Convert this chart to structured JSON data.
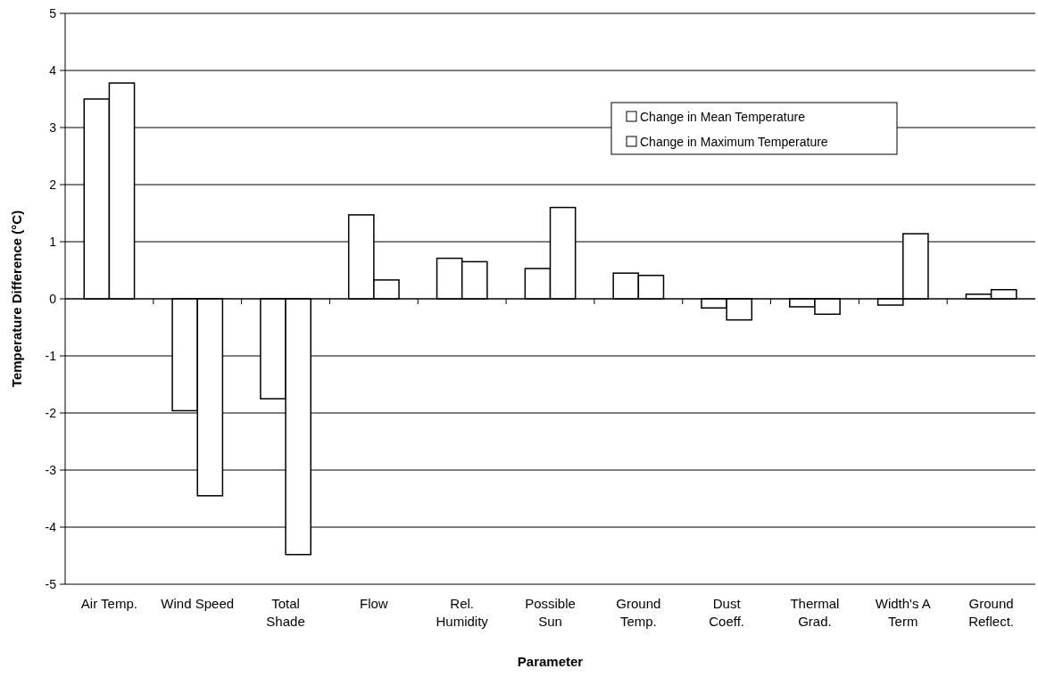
{
  "chart_data": {
    "type": "bar",
    "xlabel": "Parameter",
    "ylabel": "Temperature Difference (°C)",
    "categories": [
      "Air Temp.",
      "Wind Speed",
      "Total Shade",
      "Flow",
      "Rel. Humidity",
      "Possible Sun",
      "Ground Temp.",
      "Dust Coeff.",
      "Thermal Grad.",
      "Width's A Term",
      "Ground Reflect."
    ],
    "series": [
      {
        "name": "Change in Mean Temperature",
        "color": "#ffffff",
        "values": [
          3.5,
          -1.96,
          -1.75,
          1.47,
          0.71,
          0.53,
          0.45,
          -0.16,
          -0.14,
          -0.11,
          0.08
        ]
      },
      {
        "name": "Change in Maximum Temperature",
        "color": "#ffffff",
        "values": [
          3.78,
          -3.45,
          -4.48,
          0.33,
          0.65,
          1.6,
          0.41,
          -0.37,
          -0.27,
          1.14,
          0.16
        ]
      }
    ],
    "ylim": [
      -5,
      5
    ],
    "yticks": [
      -5,
      -4,
      -3,
      -2,
      -1,
      0,
      1,
      2,
      3,
      4,
      5
    ],
    "grid": "y",
    "legend": "top right"
  }
}
